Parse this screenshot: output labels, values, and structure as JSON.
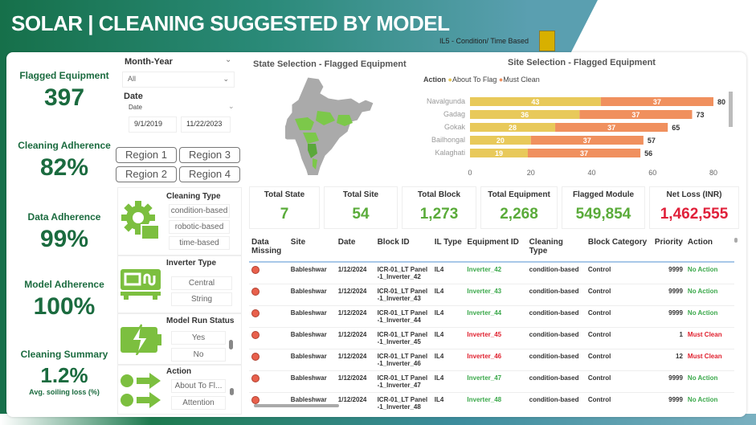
{
  "header": {
    "title": "SOLAR | CLEANING SUGGESTED BY MODEL",
    "legend_note": "IL5 - Condition/ Time Based",
    "legend_color": "#d8b000"
  },
  "kpis": [
    {
      "label": "Flagged Equipment",
      "value": "397"
    },
    {
      "label": "Cleaning Adherence",
      "value": "82%"
    },
    {
      "label": "Data Adherence",
      "value": "99%"
    },
    {
      "label": "Model Adherence",
      "value": "100%"
    },
    {
      "label": "Cleaning Summary",
      "value": "1.2%",
      "sub": "Avg. soiling loss (%)"
    }
  ],
  "filters": {
    "month_year_label": "Month-Year",
    "month_year_value": "All",
    "date_label": "Date",
    "date_sub_label": "Date",
    "date_start": "9/1/2019",
    "date_end": "11/22/2023",
    "regions": [
      "Region 1",
      "Region 3",
      "Region 2",
      "Region 4"
    ],
    "cleaning_type": {
      "label": "Cleaning Type",
      "options": [
        "condition-based",
        "robotic-based",
        "time-based"
      ]
    },
    "inverter_type": {
      "label": "Inverter Type",
      "options": [
        "Central",
        "String"
      ]
    },
    "model_run_status": {
      "label": "Model Run Status",
      "options": [
        "Yes",
        "No"
      ]
    },
    "action": {
      "label": "Action",
      "options": [
        "About To Fl...",
        "Attention"
      ]
    }
  },
  "map": {
    "title": "State Selection - Flagged Equipment"
  },
  "chart_data": {
    "type": "bar",
    "stacked": true,
    "orientation": "horizontal",
    "title": "Site Selection - Flagged Equipment",
    "legend_title": "Action",
    "legend_placement": "top-left",
    "categories": [
      "Navalgunda",
      "Gadag",
      "Gokak",
      "Bailhongal",
      "Kalaghati"
    ],
    "series": [
      {
        "name": "About To Flag",
        "color": "#e8c95a",
        "values": [
          43,
          36,
          28,
          20,
          19
        ]
      },
      {
        "name": "Must Clean",
        "color": "#f0905e",
        "values": [
          37,
          37,
          37,
          37,
          37
        ]
      }
    ],
    "totals": [
      80,
      73,
      65,
      57,
      56
    ],
    "xlim": [
      0,
      80
    ],
    "xticks": [
      0,
      20,
      40,
      60,
      80
    ]
  },
  "summary": [
    {
      "label": "Total State",
      "value": "7",
      "color": "#5aab3a"
    },
    {
      "label": "Total Site",
      "value": "54",
      "color": "#5aab3a"
    },
    {
      "label": "Total Block",
      "value": "1,273",
      "color": "#5aab3a"
    },
    {
      "label": "Total Equipment",
      "value": "2,268",
      "color": "#5aab3a"
    },
    {
      "label": "Flagged Module",
      "value": "549,854",
      "color": "#5aab3a"
    },
    {
      "label": "Net Loss (INR)",
      "value": "1,462,555",
      "color": "#e0203a"
    }
  ],
  "table": {
    "columns": [
      "Data Missing",
      "Site",
      "Date",
      "Block ID",
      "IL Type",
      "Equipment ID",
      "Cleaning Type",
      "Block Category",
      "Priority",
      "Action"
    ],
    "rows": [
      {
        "site": "Bableshwar",
        "date": "1/12/2024",
        "block": "ICR-01_LT Panel -1_Inverter_42",
        "il": "IL4",
        "equip": "Inverter_42",
        "ctype": "condition-based",
        "cat": "Control",
        "priority": "9999",
        "action": "No Action",
        "status": "green"
      },
      {
        "site": "Bableshwar",
        "date": "1/12/2024",
        "block": "ICR-01_LT Panel -1_Inverter_43",
        "il": "IL4",
        "equip": "Inverter_43",
        "ctype": "condition-based",
        "cat": "Control",
        "priority": "9999",
        "action": "No Action",
        "status": "green"
      },
      {
        "site": "Bableshwar",
        "date": "1/12/2024",
        "block": "ICR-01_LT Panel -1_Inverter_44",
        "il": "IL4",
        "equip": "Inverter_44",
        "ctype": "condition-based",
        "cat": "Control",
        "priority": "9999",
        "action": "No Action",
        "status": "green"
      },
      {
        "site": "Bableshwar",
        "date": "1/12/2024",
        "block": "ICR-01_LT Panel -1_Inverter_45",
        "il": "IL4",
        "equip": "Inverter_45",
        "ctype": "condition-based",
        "cat": "Control",
        "priority": "1",
        "action": "Must Clean",
        "status": "red"
      },
      {
        "site": "Bableshwar",
        "date": "1/12/2024",
        "block": "ICR-01_LT Panel -1_Inverter_46",
        "il": "IL4",
        "equip": "Inverter_46",
        "ctype": "condition-based",
        "cat": "Control",
        "priority": "12",
        "action": "Must Clean",
        "status": "red"
      },
      {
        "site": "Bableshwar",
        "date": "1/12/2024",
        "block": "ICR-01_LT Panel -1_Inverter_47",
        "il": "IL4",
        "equip": "Inverter_47",
        "ctype": "condition-based",
        "cat": "Control",
        "priority": "9999",
        "action": "No Action",
        "status": "green"
      },
      {
        "site": "Bableshwar",
        "date": "1/12/2024",
        "block": "ICR-01_LT Panel -1_Inverter_48",
        "il": "IL4",
        "equip": "Inverter_48",
        "ctype": "condition-based",
        "cat": "Control",
        "priority": "9999",
        "action": "No Action",
        "status": "green"
      }
    ]
  }
}
